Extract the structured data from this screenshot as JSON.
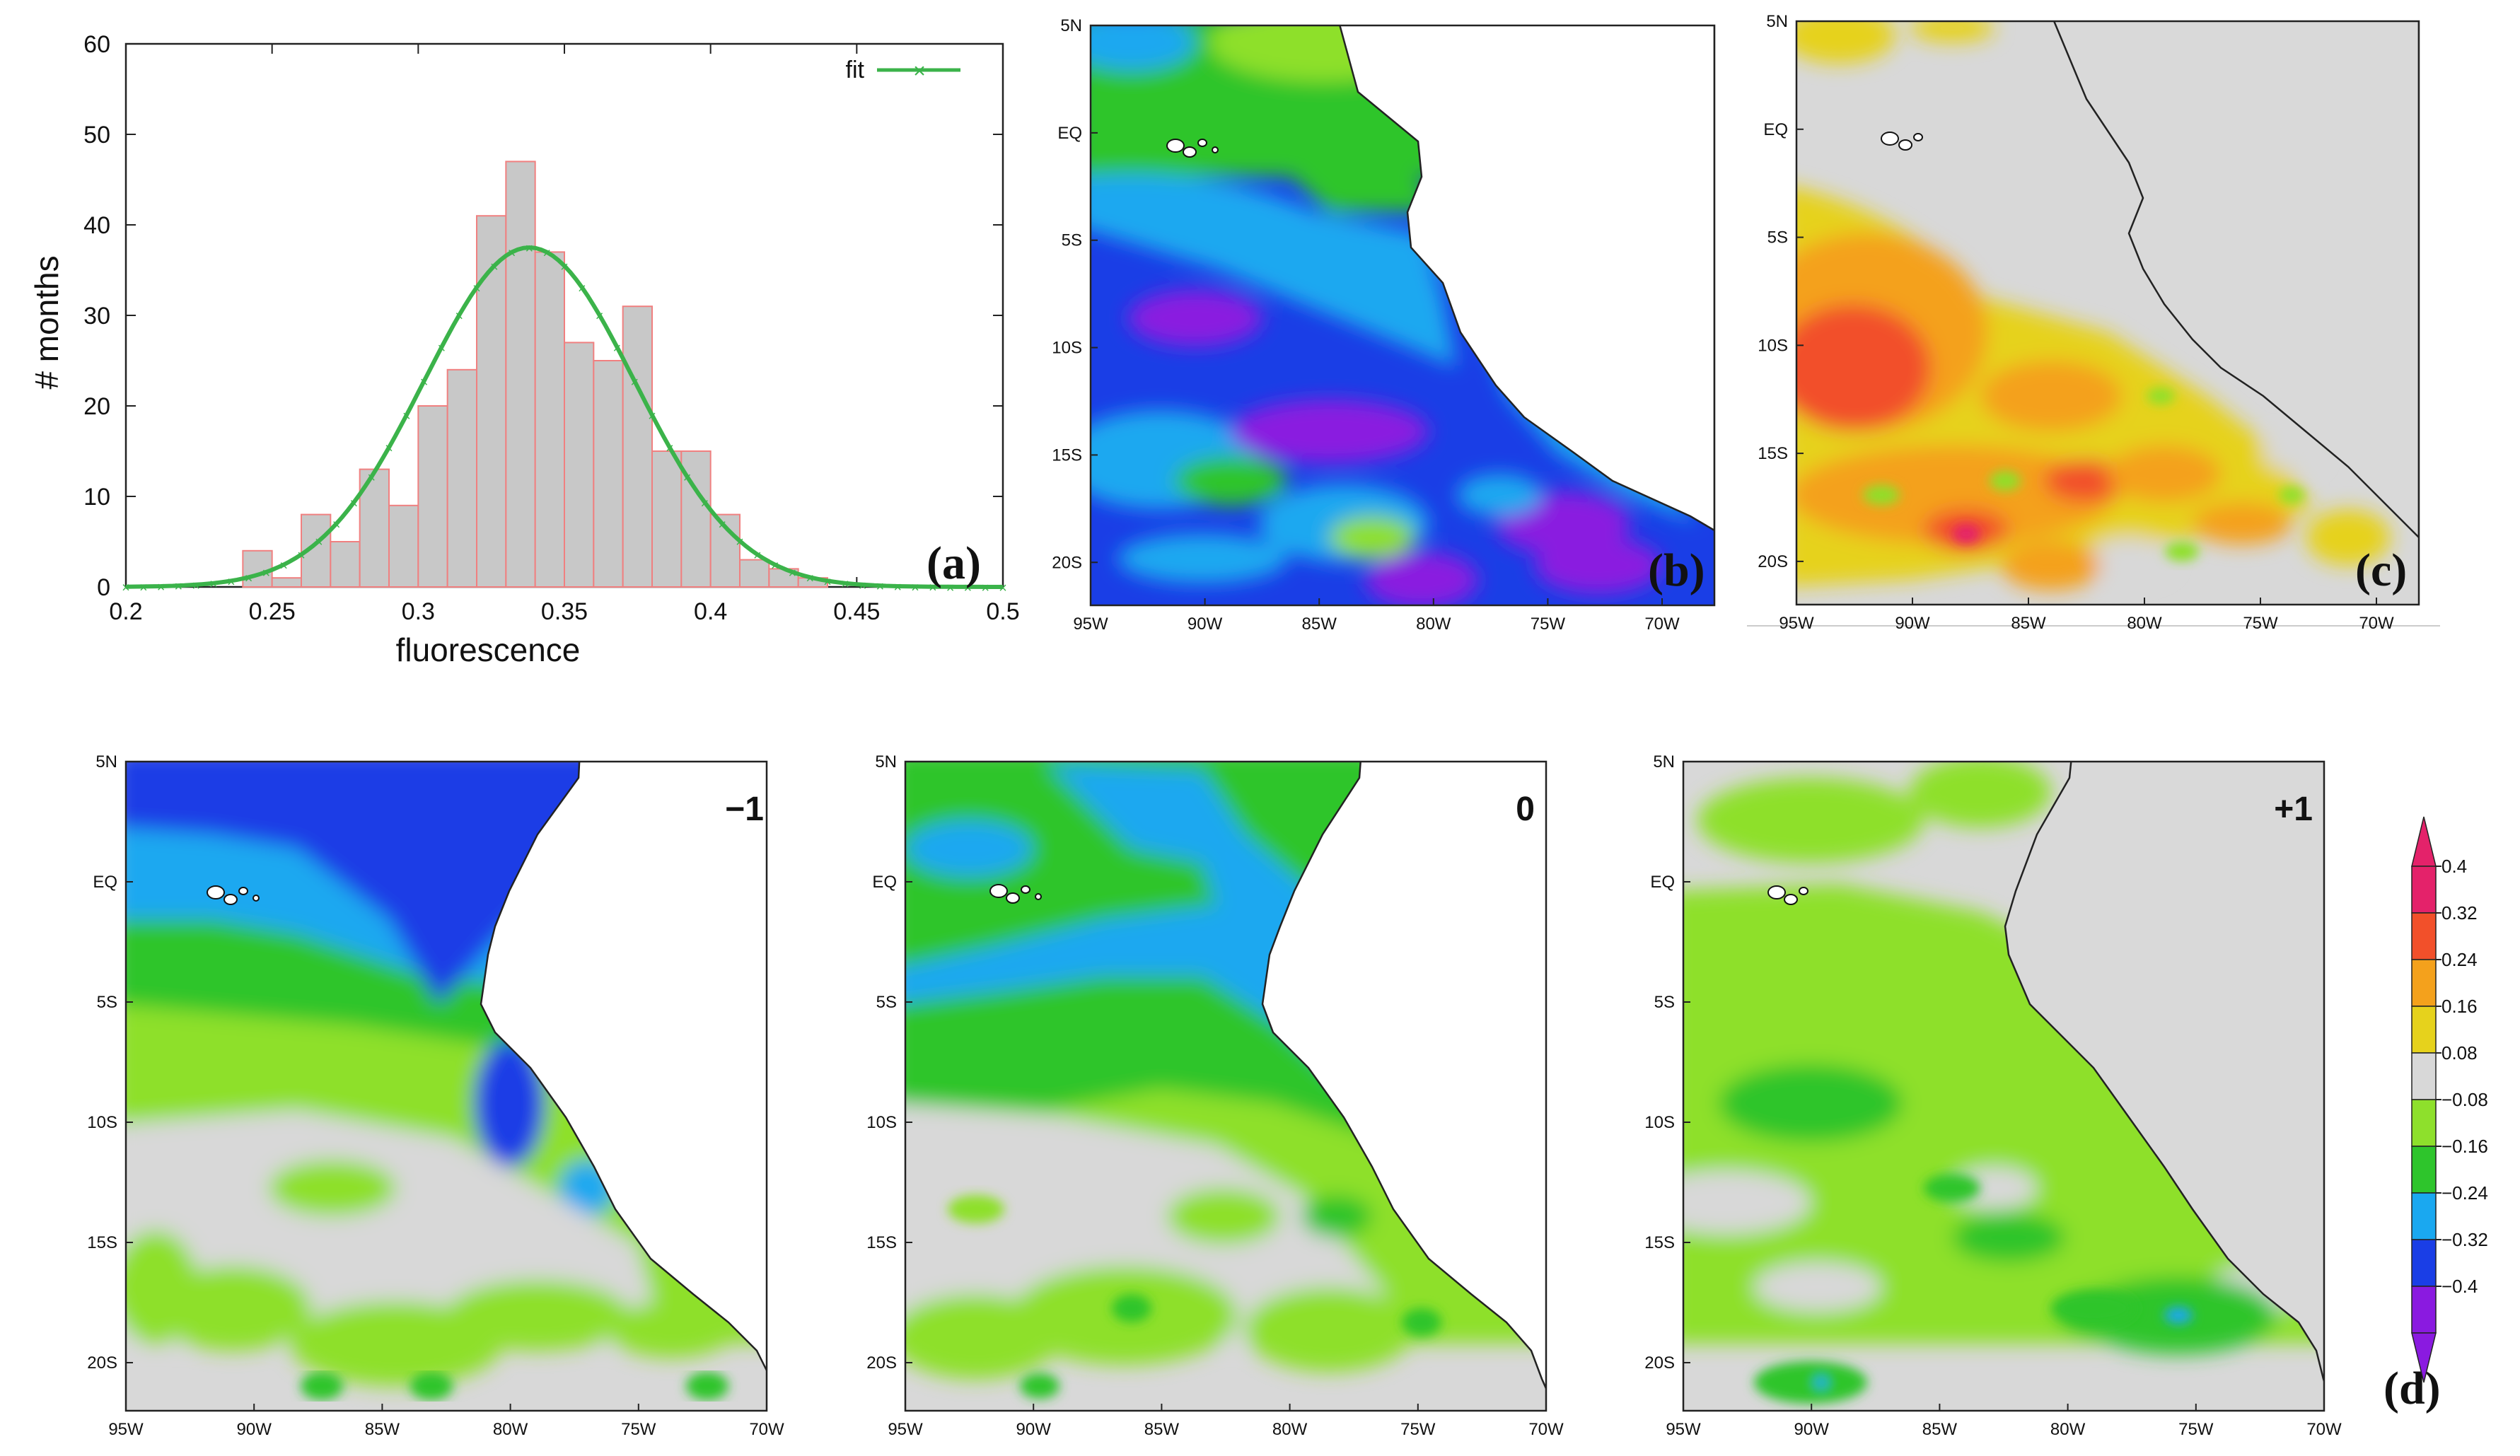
{
  "chart_data": [
    {
      "panel": "(a)",
      "type": "bar",
      "xlabel": "fluorescence",
      "ylabel": "# months",
      "xlim": [
        0.2,
        0.5
      ],
      "ylim": [
        0,
        60
      ],
      "xticks": [
        "0.2",
        "0.25",
        "0.3",
        "0.35",
        "0.4",
        "0.45",
        "0.5"
      ],
      "yticks": [
        "0",
        "10",
        "20",
        "30",
        "40",
        "50",
        "60"
      ],
      "bin_width": 0.01,
      "bin_starts": [
        0.24,
        0.25,
        0.26,
        0.27,
        0.28,
        0.29,
        0.3,
        0.31,
        0.32,
        0.33,
        0.34,
        0.35,
        0.36,
        0.37,
        0.38,
        0.39,
        0.4,
        0.41,
        0.42,
        0.43
      ],
      "values": [
        4,
        1,
        8,
        5,
        13,
        9,
        20,
        24,
        41,
        47,
        37,
        27,
        25,
        31,
        15,
        15,
        8,
        3,
        2,
        1
      ],
      "bar_color": "#c8c8c8",
      "bar_edge_color": "#f08080",
      "series": [
        {
          "name": "fit",
          "type": "line",
          "mean": 0.338,
          "sd": 0.036,
          "peak": 37.5,
          "color": "#3bb34a"
        }
      ]
    },
    {
      "panel": "(b)",
      "type": "heatmap",
      "lon_ticks": [
        "95W",
        "90W",
        "85W",
        "80W",
        "75W",
        "70W"
      ],
      "lat_ticks": [
        "5N",
        "EQ",
        "5S",
        "10S",
        "15S",
        "20S"
      ]
    },
    {
      "panel": "(c)",
      "type": "heatmap",
      "lon_ticks": [
        "95W",
        "90W",
        "85W",
        "80W",
        "75W",
        "70W"
      ],
      "lat_ticks": [
        "5N",
        "EQ",
        "5S",
        "10S",
        "15S",
        "20S"
      ]
    },
    {
      "panel": "(d)",
      "type": "heatmap",
      "lags": [
        "−1",
        "0",
        "+1"
      ],
      "lon_ticks": [
        "95W",
        "90W",
        "85W",
        "80W",
        "75W",
        "70W"
      ],
      "lat_ticks": [
        "5N",
        "EQ",
        "5S",
        "10S",
        "15S",
        "20S"
      ],
      "colorbar": {
        "labels": [
          "0.4",
          "0.32",
          "0.24",
          "0.16",
          "0.08",
          "−0.08",
          "−0.16",
          "−0.24",
          "−0.32",
          "−0.4"
        ],
        "colors": [
          "#e4226a",
          "#f2502a",
          "#f4a11c",
          "#e6d21c",
          "#d8d8d8",
          "#8ee02c",
          "#2ec52c",
          "#1aa8f0",
          "#1a3ee6",
          "#8a1ae0"
        ]
      }
    }
  ],
  "panel_labels": {
    "a": "(a)",
    "b": "(b)",
    "c": "(c)",
    "d": "(d)"
  },
  "colors": {
    "land": "#d9d9d9",
    "gray": "#d8d8d8",
    "lightgreen": "#8ee02c",
    "green": "#2ec52c",
    "lightblue": "#1aa8f0",
    "blue": "#1a3ee6",
    "purple": "#8a1ae0",
    "yellow": "#e6d21c",
    "orange": "#f4a11c",
    "red": "#f2502a",
    "magenta": "#e4226a"
  }
}
